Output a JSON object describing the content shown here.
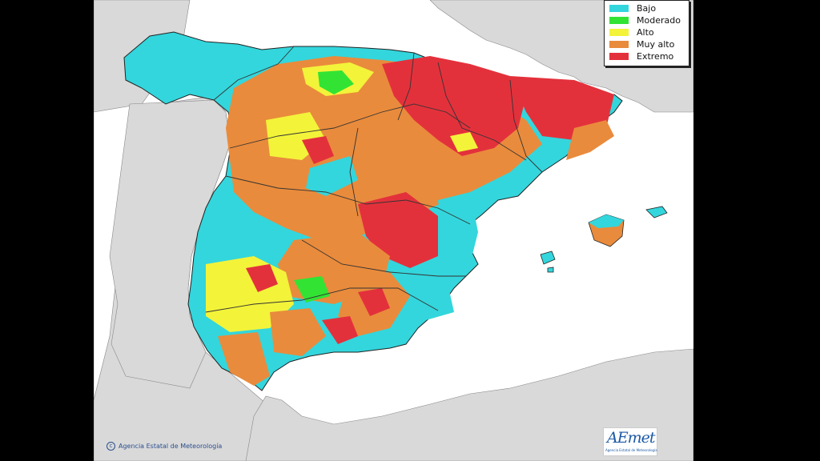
{
  "legend": {
    "items": [
      {
        "label": "Bajo",
        "color": "#33d6dc"
      },
      {
        "label": "Moderado",
        "color": "#32e334"
      },
      {
        "label": "Alto",
        "color": "#f3f33a"
      },
      {
        "label": "Muy alto",
        "color": "#e98b3c"
      },
      {
        "label": "Extremo",
        "color": "#e3313c"
      }
    ]
  },
  "copyright_text": "Agencia Estatal de Meteorología",
  "logo": {
    "main": "AEmet",
    "sub": "Agencia Estatal de Meteorología"
  },
  "colors": {
    "land_other": "#d9d9d9",
    "sea": "#ffffff",
    "border": "#333333"
  }
}
